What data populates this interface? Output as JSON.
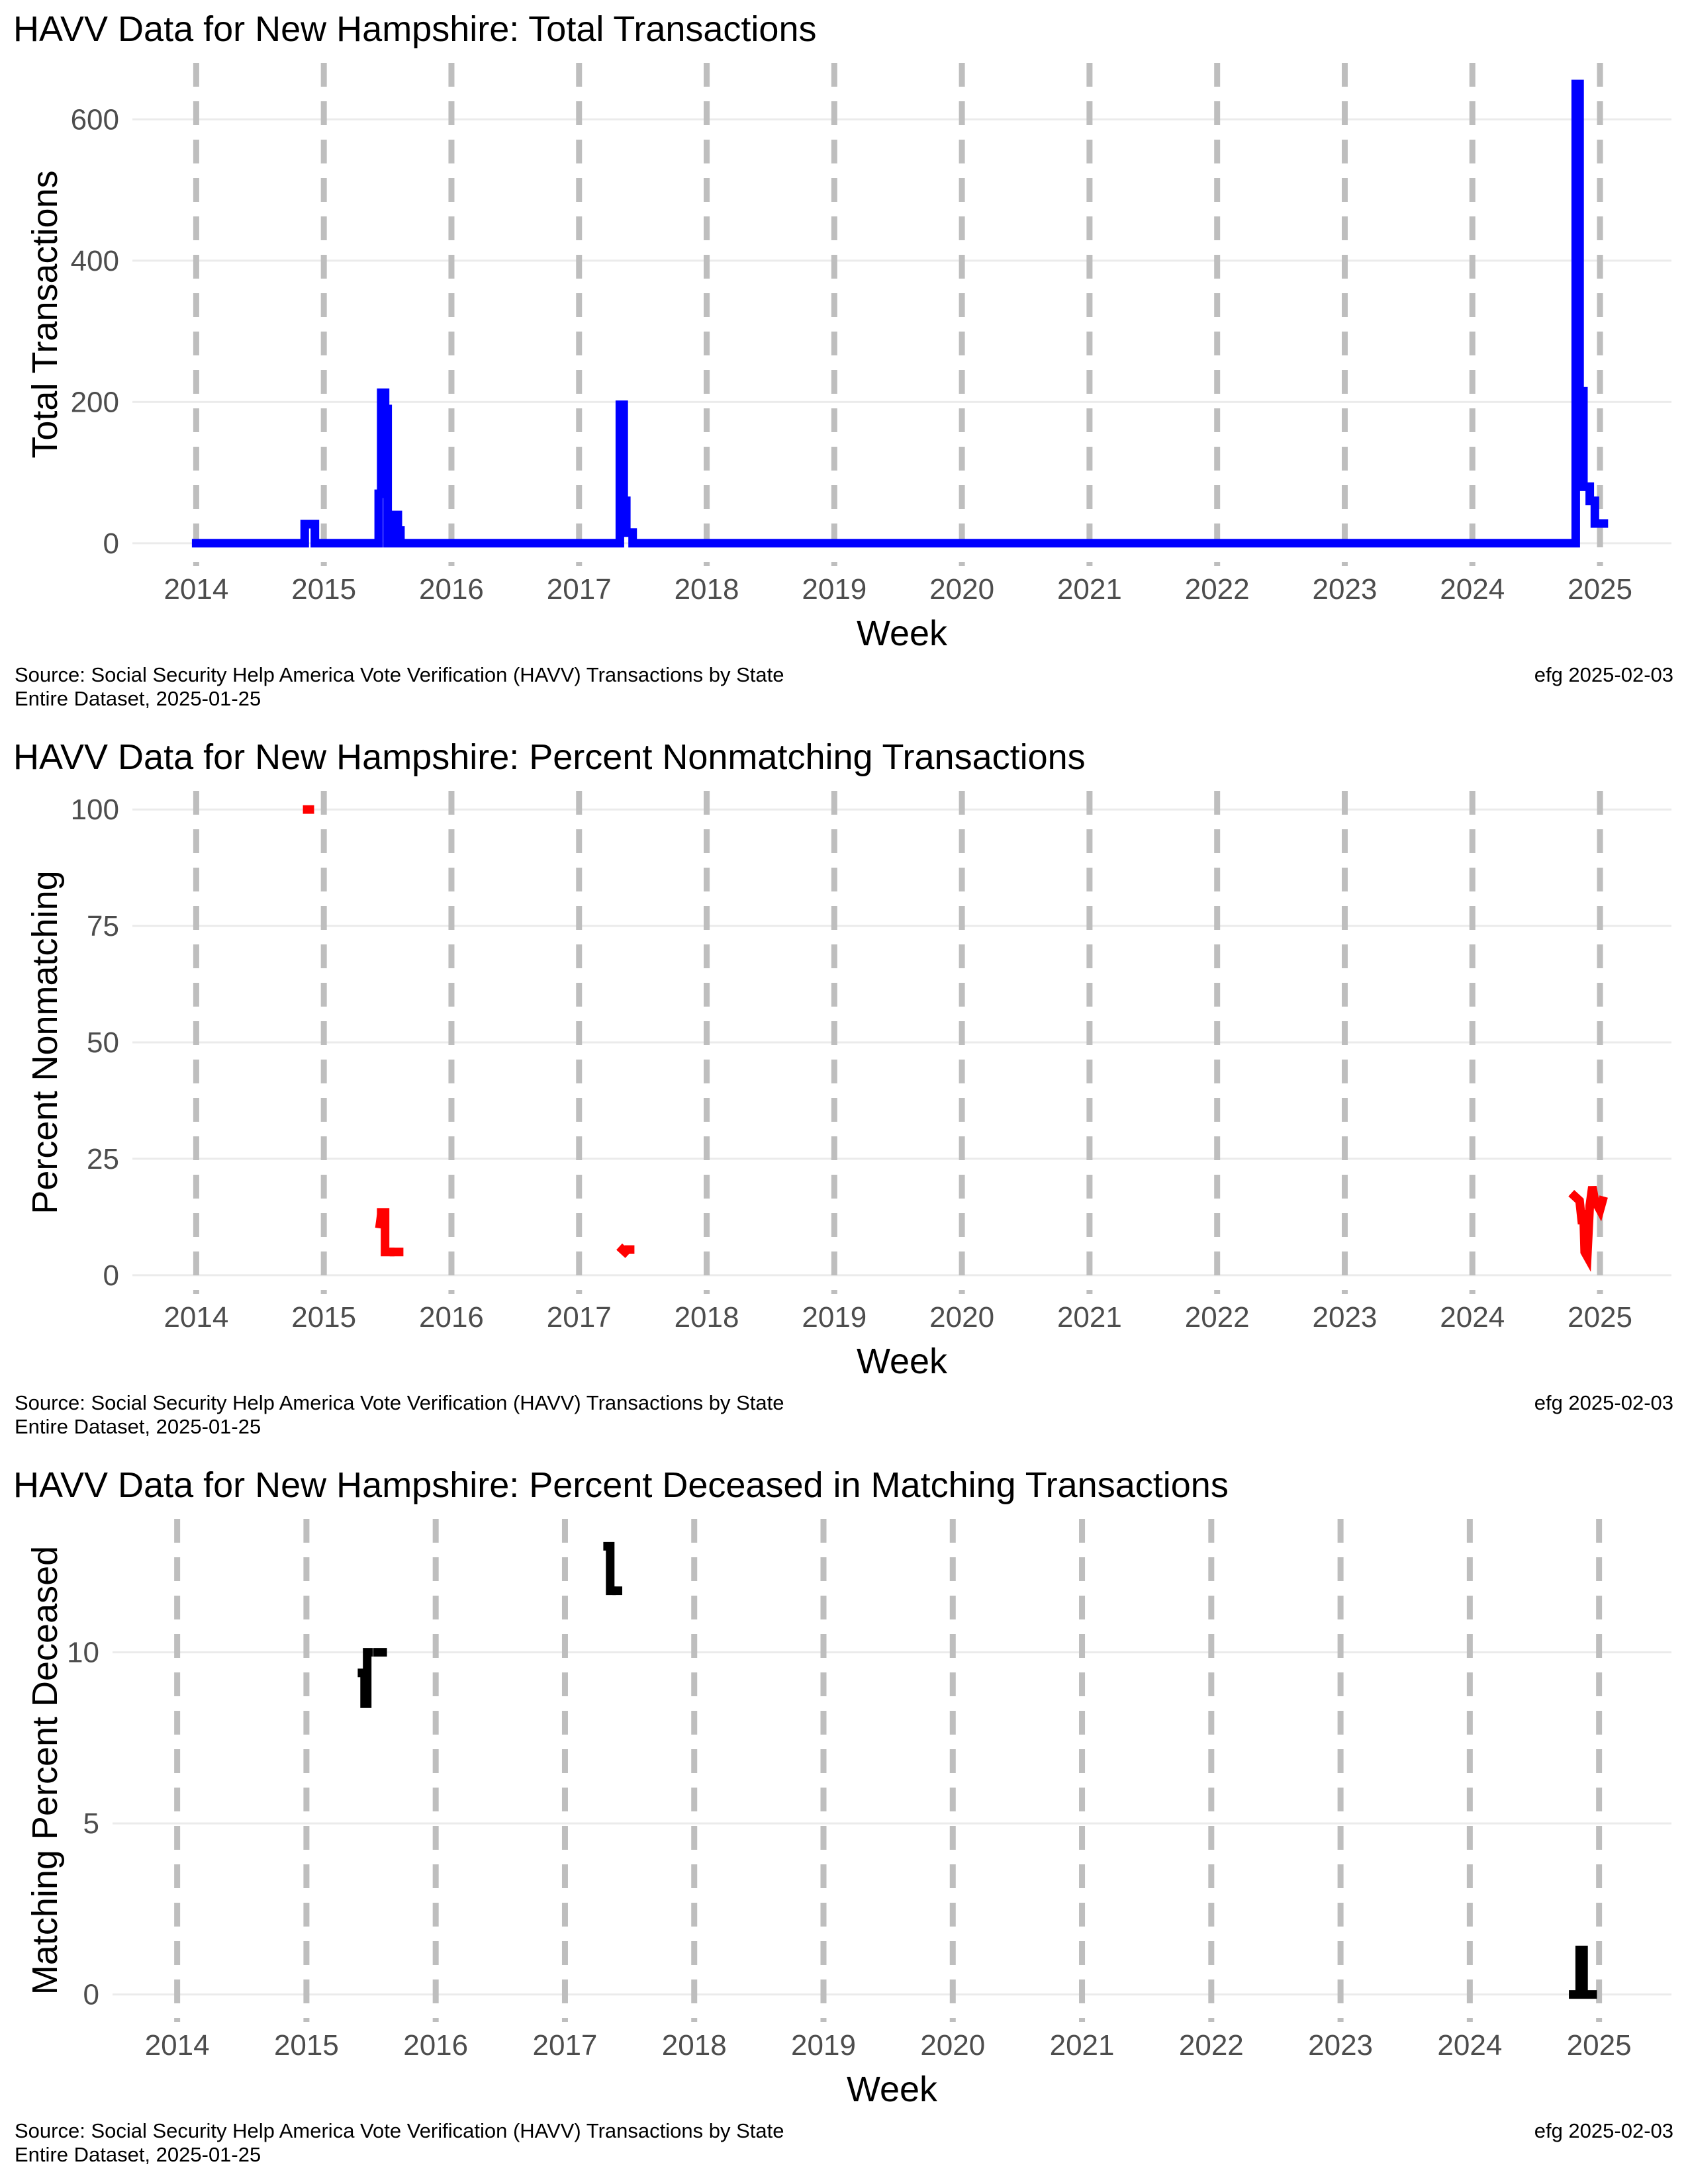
{
  "chart_data": [
    {
      "type": "line",
      "title": "HAVV Data for New Hampshire:  Total Transactions",
      "xlabel": "Week",
      "ylabel": "Total Transactions",
      "x_tick_labels": [
        "2014",
        "2015",
        "2016",
        "2017",
        "2018",
        "2019",
        "2020",
        "2021",
        "2022",
        "2023",
        "2024",
        "2025"
      ],
      "y_ticks": [
        0,
        200,
        400,
        600
      ],
      "xlim": [
        2013.5,
        2025.56
      ],
      "ylim": [
        -32,
        680
      ],
      "grid": "horizontal major",
      "year_markers": "dashed grey vertical line at start of each year",
      "series": [
        {
          "color": "#0000ff",
          "mode": "step",
          "points": [
            [
              2014.0,
              0
            ],
            [
              2014.85,
              0
            ],
            [
              2014.85,
              27
            ],
            [
              2014.93,
              27
            ],
            [
              2014.93,
              0
            ],
            [
              2015.43,
              0
            ],
            [
              2015.43,
              70
            ],
            [
              2015.45,
              70
            ],
            [
              2015.45,
              213
            ],
            [
              2015.48,
              213
            ],
            [
              2015.48,
              190
            ],
            [
              2015.5,
              190
            ],
            [
              2015.5,
              0
            ],
            [
              2015.54,
              0
            ],
            [
              2015.54,
              40
            ],
            [
              2015.58,
              40
            ],
            [
              2015.58,
              18
            ],
            [
              2015.6,
              18
            ],
            [
              2015.6,
              0
            ],
            [
              2017.32,
              0
            ],
            [
              2017.32,
              196
            ],
            [
              2017.35,
              196
            ],
            [
              2017.35,
              60
            ],
            [
              2017.37,
              60
            ],
            [
              2017.37,
              15
            ],
            [
              2017.42,
              15
            ],
            [
              2017.42,
              0
            ],
            [
              2024.81,
              0
            ],
            [
              2024.81,
              650
            ],
            [
              2024.84,
              650
            ],
            [
              2024.84,
              215
            ],
            [
              2024.87,
              215
            ],
            [
              2024.87,
              80
            ],
            [
              2024.92,
              80
            ],
            [
              2024.92,
              60
            ],
            [
              2024.96,
              60
            ],
            [
              2024.96,
              28
            ],
            [
              2025.03,
              28
            ]
          ]
        }
      ],
      "caption_left": [
        "Source:  Social Security Help America Vote Verification (HAVV) Transactions by State",
        "Entire Dataset, 2025-01-25"
      ],
      "caption_right": "efg 2025-02-03"
    },
    {
      "type": "line",
      "title": "HAVV Data for New Hampshire:  Percent Nonmatching Transactions",
      "xlabel": "Week",
      "ylabel": "Percent Nonmatching",
      "x_tick_labels": [
        "2014",
        "2015",
        "2016",
        "2017",
        "2018",
        "2019",
        "2020",
        "2021",
        "2022",
        "2023",
        "2024",
        "2025"
      ],
      "y_ticks": [
        0,
        25,
        50,
        75,
        100
      ],
      "xlim": [
        2013.5,
        2025.56
      ],
      "ylim": [
        -4,
        104
      ],
      "grid": "horizontal major",
      "year_markers": "dashed grey vertical line at start of each year",
      "series": [
        {
          "color": "#ff0000",
          "segments": [
            [
              [
                2014.87,
                100
              ],
              [
                2014.89,
                100
              ]
            ],
            [
              [
                2015.44,
                11
              ],
              [
                2015.45,
                13
              ]
            ],
            [
              [
                2015.45,
                13.5
              ],
              [
                2015.48,
                13.5
              ],
              [
                2015.48,
                5
              ],
              [
                2015.49,
                5
              ],
              [
                2015.49,
                5
              ],
              [
                2015.52,
                5
              ]
            ],
            [
              [
                2015.55,
                5
              ],
              [
                2015.59,
                5
              ]
            ],
            [
              [
                2017.34,
                5.5
              ],
              [
                2017.36,
                5
              ]
            ],
            [
              [
                2017.39,
                5.5
              ],
              [
                2017.4,
                5.5
              ]
            ],
            [
              [
                2024.8,
                17
              ],
              [
                2024.84,
                16
              ],
              [
                2024.86,
                11
              ],
              [
                2024.87,
                14
              ],
              [
                2024.88,
                5
              ],
              [
                2024.9,
                4
              ],
              [
                2024.92,
                15
              ],
              [
                2024.94,
                19
              ],
              [
                2024.96,
                16
              ],
              [
                2024.98,
                15
              ],
              [
                2025.0,
                14
              ],
              [
                2025.02,
                16
              ]
            ]
          ]
        }
      ],
      "caption_left": [
        "Source:  Social Security Help America Vote Verification (HAVV) Transactions by State",
        "Entire Dataset, 2025-01-25"
      ],
      "caption_right": "efg 2025-02-03"
    },
    {
      "type": "line",
      "title": "HAVV Data for New Hampshire:  Percent Deceased in Matching Transactions",
      "xlabel": "Week",
      "ylabel": "Matching Percent Deceased",
      "x_tick_labels": [
        "2014",
        "2015",
        "2016",
        "2017",
        "2018",
        "2019",
        "2020",
        "2021",
        "2022",
        "2023",
        "2024",
        "2025"
      ],
      "y_ticks": [
        0,
        5,
        10
      ],
      "xlim": [
        2013.5,
        2025.56
      ],
      "ylim": [
        -0.8,
        13.9
      ],
      "grid": "horizontal major",
      "year_markers": "dashed grey vertical line at start of each year",
      "series": [
        {
          "color": "#000000",
          "segments": [
            [
              [
                2015.43,
                9.4
              ],
              [
                2015.45,
                9.4
              ],
              [
                2015.45,
                8.5
              ],
              [
                2015.47,
                8.5
              ],
              [
                2015.47,
                10.0
              ],
              [
                2015.48,
                10.0
              ]
            ],
            [
              [
                2015.55,
                10.0
              ],
              [
                2015.59,
                10.0
              ]
            ],
            [
              [
                2017.33,
                13.1
              ],
              [
                2017.35,
                13.1
              ],
              [
                2017.35,
                11.8
              ],
              [
                2017.36,
                11.8
              ]
            ],
            [
              [
                2017.4,
                11.8
              ],
              [
                2017.41,
                11.8
              ]
            ],
            [
              [
                2024.8,
                0
              ],
              [
                2024.85,
                0
              ],
              [
                2024.85,
                1.3
              ],
              [
                2024.88,
                1.3
              ],
              [
                2024.88,
                0
              ],
              [
                2024.95,
                0
              ]
            ]
          ]
        }
      ],
      "caption_left": [
        "Source:  Social Security Help America Vote Verification (HAVV) Transactions by State",
        "Entire Dataset, 2025-01-25"
      ],
      "caption_right": "efg 2025-02-03"
    }
  ]
}
